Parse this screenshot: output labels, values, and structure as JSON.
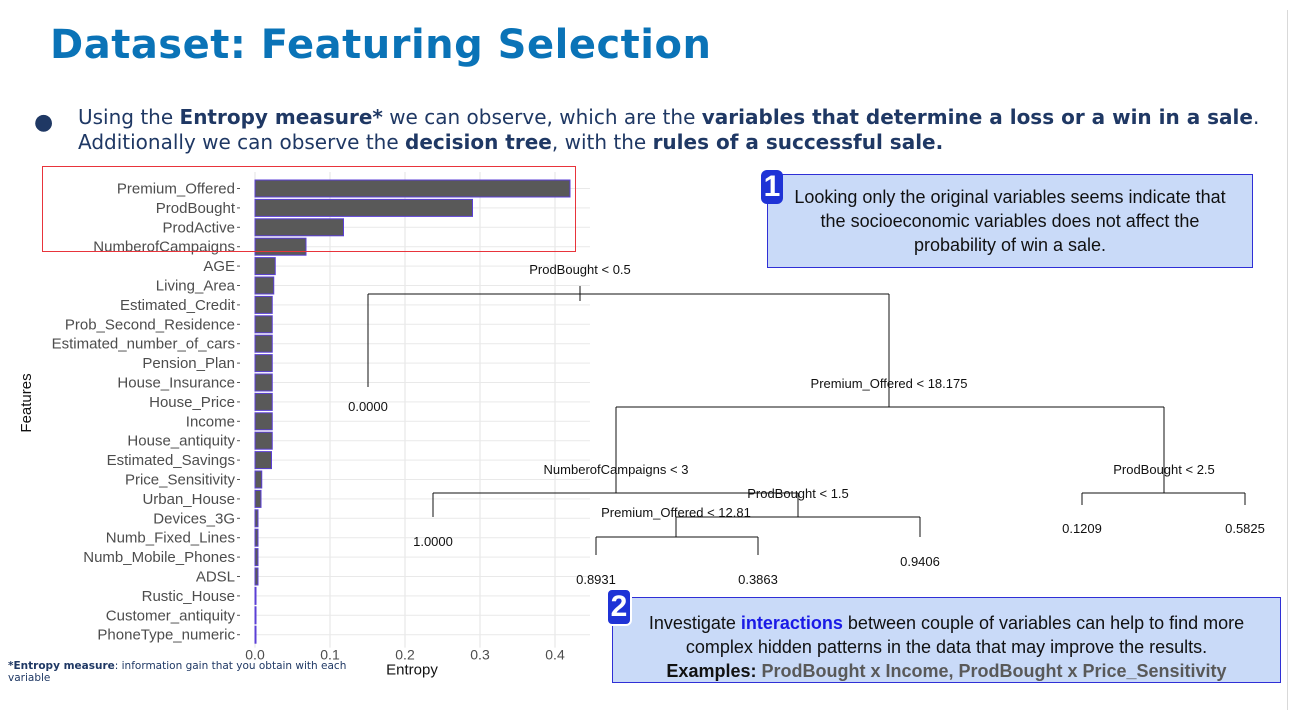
{
  "slide": {
    "title": "Dataset: Featuring Selection",
    "bullet": {
      "p1": "Using the ",
      "b1": "Entropy measure*",
      "p2": " we can observe, which are the ",
      "b2": "variables that determine a loss or a win in a sale",
      "p3": ". Additionally we can observe the ",
      "b3": "decision tree",
      "p4": ", with the ",
      "b4": "rules of a successful sale."
    },
    "footnote": {
      "b": "*Entropy measure",
      "rest": ": information gain that you obtain with each variable"
    }
  },
  "chart_data": {
    "type": "bar",
    "orientation": "horizontal",
    "xlabel": "Entropy",
    "ylabel": "Features",
    "xlim": [
      0,
      0.44
    ],
    "xticks": [
      "0.0",
      "0.1",
      "0.2",
      "0.3",
      "0.4"
    ],
    "grid": true,
    "bar_color": "#595959",
    "bar_edge_color": "#5b3fd6",
    "categories": [
      "Premium_Offered",
      "ProdBought",
      "ProdActive",
      "NumberofCampaigns",
      "AGE",
      "Living_Area",
      "Estimated_Credit",
      "Prob_Second_Residence",
      "Estimated_number_of_cars",
      "Pension_Plan",
      "House_Insurance",
      "House_Price",
      "Income",
      "House_antiquity",
      "Estimated_Savings",
      "Price_Sensitivity",
      "Urban_House",
      "Devices_3G",
      "Numb_Fixed_Lines",
      "Numb_Mobile_Phones",
      "ADSL",
      "Rustic_House",
      "Customer_antiquity",
      "PhoneType_numeric"
    ],
    "values": [
      0.42,
      0.29,
      0.118,
      0.068,
      0.027,
      0.025,
      0.023,
      0.023,
      0.023,
      0.023,
      0.023,
      0.023,
      0.023,
      0.023,
      0.022,
      0.009,
      0.008,
      0.004,
      0.004,
      0.004,
      0.004,
      0.001,
      0.001,
      0.001
    ],
    "highlight_box_colour": "#e8343b"
  },
  "tree": {
    "nodes": {
      "root": "ProdBought < 0.5",
      "n_premium": "Premium_Offered < 18.175",
      "n_campaigns": "NumberofCampaigns < 3",
      "n_prodbought15": "ProdBought < 1.5",
      "n_premium1281": "Premium_Offered < 12.81",
      "n_prodbought25": "ProdBought < 2.5"
    },
    "leaves": {
      "l0": "0.0000",
      "l1": "1.0000",
      "l2": "0.8931",
      "l3": "0.3863",
      "l4": "0.9406",
      "l5": "0.1209",
      "l6": "0.5825"
    }
  },
  "callout1": {
    "badge": "1",
    "text": "Looking only the original variables seems indicate that the socioeconomic variables does not affect the probability of win a sale."
  },
  "callout2": {
    "badge": "2",
    "t1": "Investigate ",
    "hl": "interactions",
    "t2": " between couple of variables can help to find more complex hidden patterns in the data that may improve the results.",
    "ex_label": "Examples:",
    "ex_values": "ProdBought x Income, ProdBought x Price_Sensitivity"
  }
}
